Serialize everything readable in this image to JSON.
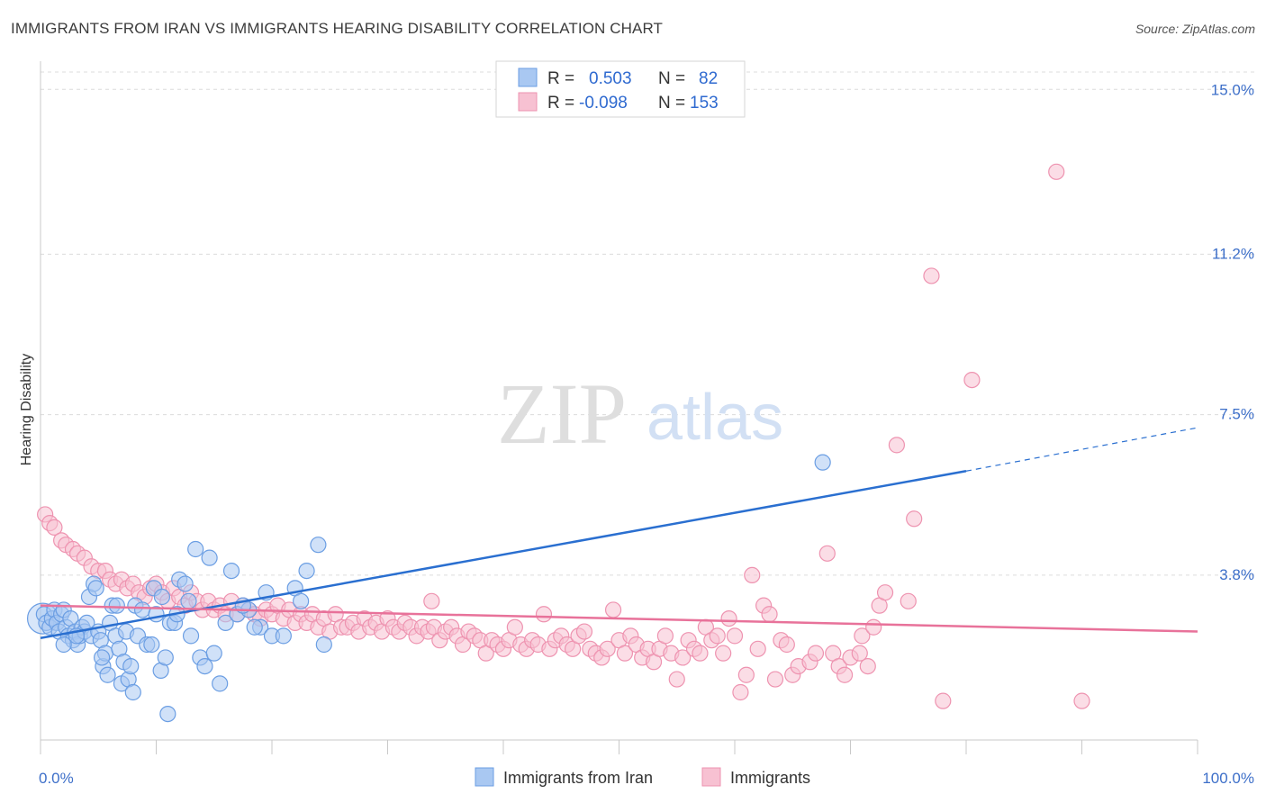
{
  "title": "IMMIGRANTS FROM IRAN VS IMMIGRANTS HEARING DISABILITY CORRELATION CHART",
  "source": "Source: ZipAtlas.com",
  "watermark": {
    "zip": "ZIP",
    "atlas": "atlas"
  },
  "colors": {
    "blue_fill": "#a9c8f2",
    "blue_stroke": "#6b9ee3",
    "blue_line": "#2a6fd0",
    "pink_fill": "#f7c1d2",
    "pink_stroke": "#ee93b0",
    "pink_line": "#e8729a",
    "grid": "#dcdcdc",
    "axis_text": "#3d6fc9"
  },
  "legend": {
    "rows": [
      {
        "r_label": "R =",
        "r_value": "0.503",
        "n_label": "N =",
        "n_value": "82",
        "series": "blue"
      },
      {
        "r_label": "R =",
        "r_value": "-0.098",
        "n_label": "N =",
        "n_value": "153",
        "series": "pink"
      }
    ]
  },
  "bottom_legend": [
    "Immigrants from Iran",
    "Immigrants"
  ],
  "chart_data": {
    "type": "scatter",
    "title": "IMMIGRANTS FROM IRAN VS IMMIGRANTS HEARING DISABILITY CORRELATION CHART",
    "xlabel": "",
    "ylabel": "Hearing Disability",
    "xlim": [
      0,
      100
    ],
    "ylim": [
      0,
      15.4
    ],
    "x_tick_labels": [
      "0.0%",
      "100.0%"
    ],
    "y_ticks": [
      3.8,
      7.5,
      11.2,
      15.0
    ],
    "y_tick_labels": [
      "3.8%",
      "7.5%",
      "11.2%",
      "15.0%"
    ],
    "grid": true,
    "legend_position": "top-center",
    "series": [
      {
        "name": "Immigrants from Iran",
        "color": "blue",
        "trend": {
          "x0": 0,
          "y0": 2.35,
          "x1": 80,
          "y1": 6.2,
          "dash_to_x": 100,
          "dash_to_y": 7.2
        },
        "points": [
          [
            0.3,
            2.9
          ],
          [
            0.5,
            2.7
          ],
          [
            0.8,
            2.6
          ],
          [
            1.0,
            2.8
          ],
          [
            1.2,
            3.0
          ],
          [
            1.4,
            2.7
          ],
          [
            1.6,
            2.5
          ],
          [
            1.8,
            2.9
          ],
          [
            2.0,
            3.0
          ],
          [
            2.2,
            2.6
          ],
          [
            2.4,
            2.4
          ],
          [
            2.6,
            2.8
          ],
          [
            2.8,
            2.3
          ],
          [
            3.0,
            2.5
          ],
          [
            3.2,
            2.2
          ],
          [
            3.4,
            2.4
          ],
          [
            3.6,
            2.6
          ],
          [
            3.8,
            2.5
          ],
          [
            4.0,
            2.7
          ],
          [
            4.2,
            3.3
          ],
          [
            4.4,
            2.4
          ],
          [
            4.6,
            3.6
          ],
          [
            4.8,
            3.5
          ],
          [
            5.0,
            2.5
          ],
          [
            5.2,
            2.3
          ],
          [
            5.4,
            1.7
          ],
          [
            5.6,
            2.0
          ],
          [
            5.8,
            1.5
          ],
          [
            6.0,
            2.7
          ],
          [
            6.2,
            3.1
          ],
          [
            6.5,
            2.4
          ],
          [
            6.8,
            2.1
          ],
          [
            7.0,
            1.3
          ],
          [
            7.2,
            1.8
          ],
          [
            7.4,
            2.5
          ],
          [
            7.6,
            1.4
          ],
          [
            7.8,
            1.7
          ],
          [
            8.0,
            1.1
          ],
          [
            8.2,
            3.1
          ],
          [
            8.4,
            2.4
          ],
          [
            8.8,
            3.0
          ],
          [
            9.2,
            2.2
          ],
          [
            9.6,
            2.2
          ],
          [
            9.8,
            3.5
          ],
          [
            10.0,
            2.9
          ],
          [
            10.4,
            1.6
          ],
          [
            10.8,
            1.9
          ],
          [
            11.2,
            2.7
          ],
          [
            11.6,
            2.7
          ],
          [
            11.0,
            0.6
          ],
          [
            12.0,
            3.7
          ],
          [
            12.5,
            3.6
          ],
          [
            13.0,
            2.4
          ],
          [
            13.4,
            4.4
          ],
          [
            13.8,
            1.9
          ],
          [
            14.2,
            1.7
          ],
          [
            14.6,
            4.2
          ],
          [
            15.0,
            2.0
          ],
          [
            15.5,
            1.3
          ],
          [
            16.0,
            2.7
          ],
          [
            16.5,
            3.9
          ],
          [
            17.0,
            2.9
          ],
          [
            18.0,
            3.0
          ],
          [
            19.0,
            2.6
          ],
          [
            20.0,
            2.4
          ],
          [
            22.0,
            3.5
          ],
          [
            22.5,
            3.2
          ],
          [
            18.5,
            2.6
          ],
          [
            19.5,
            3.4
          ],
          [
            17.5,
            3.1
          ],
          [
            21.0,
            2.4
          ],
          [
            23.0,
            3.9
          ],
          [
            24.0,
            4.5
          ],
          [
            24.5,
            2.2
          ],
          [
            10.5,
            3.3
          ],
          [
            12.8,
            3.2
          ],
          [
            11.8,
            2.9
          ],
          [
            6.6,
            3.1
          ],
          [
            5.3,
            1.9
          ],
          [
            3.1,
            2.4
          ],
          [
            2.0,
            2.2
          ],
          [
            67.6,
            6.4
          ]
        ]
      },
      {
        "name": "Immigrants",
        "color": "pink",
        "trend": {
          "x0": 0,
          "y0": 3.1,
          "x1": 100,
          "y1": 2.5
        },
        "points": [
          [
            0.4,
            5.2
          ],
          [
            0.8,
            5.0
          ],
          [
            1.2,
            4.9
          ],
          [
            1.8,
            4.6
          ],
          [
            2.2,
            4.5
          ],
          [
            2.8,
            4.4
          ],
          [
            3.2,
            4.3
          ],
          [
            3.8,
            4.2
          ],
          [
            4.4,
            4.0
          ],
          [
            5.0,
            3.9
          ],
          [
            5.6,
            3.9
          ],
          [
            6.0,
            3.7
          ],
          [
            6.5,
            3.6
          ],
          [
            7.0,
            3.7
          ],
          [
            7.5,
            3.5
          ],
          [
            8.0,
            3.6
          ],
          [
            8.5,
            3.4
          ],
          [
            9.0,
            3.3
          ],
          [
            9.5,
            3.5
          ],
          [
            10.0,
            3.6
          ],
          [
            10.5,
            3.4
          ],
          [
            11.0,
            3.2
          ],
          [
            11.5,
            3.5
          ],
          [
            12.0,
            3.3
          ],
          [
            12.5,
            3.1
          ],
          [
            13.0,
            3.4
          ],
          [
            13.5,
            3.2
          ],
          [
            14.0,
            3.0
          ],
          [
            14.5,
            3.2
          ],
          [
            15.0,
            3.0
          ],
          [
            15.5,
            3.1
          ],
          [
            16.0,
            2.9
          ],
          [
            16.5,
            3.2
          ],
          [
            17.0,
            2.9
          ],
          [
            17.5,
            3.1
          ],
          [
            18.0,
            3.0
          ],
          [
            18.5,
            2.9
          ],
          [
            19.0,
            2.8
          ],
          [
            19.5,
            3.0
          ],
          [
            20.0,
            2.9
          ],
          [
            20.5,
            3.1
          ],
          [
            21.0,
            2.8
          ],
          [
            21.5,
            3.0
          ],
          [
            22.0,
            2.7
          ],
          [
            22.5,
            2.9
          ],
          [
            23.0,
            2.7
          ],
          [
            23.5,
            2.9
          ],
          [
            24.0,
            2.6
          ],
          [
            24.5,
            2.8
          ],
          [
            25.0,
            2.5
          ],
          [
            25.5,
            2.9
          ],
          [
            26.0,
            2.6
          ],
          [
            26.5,
            2.6
          ],
          [
            27.0,
            2.7
          ],
          [
            27.5,
            2.5
          ],
          [
            28.0,
            2.8
          ],
          [
            28.5,
            2.6
          ],
          [
            29.0,
            2.7
          ],
          [
            29.5,
            2.5
          ],
          [
            30.0,
            2.8
          ],
          [
            30.5,
            2.6
          ],
          [
            31.0,
            2.5
          ],
          [
            31.5,
            2.7
          ],
          [
            32.0,
            2.6
          ],
          [
            32.5,
            2.4
          ],
          [
            33.0,
            2.6
          ],
          [
            33.5,
            2.5
          ],
          [
            34.0,
            2.6
          ],
          [
            34.5,
            2.3
          ],
          [
            35.0,
            2.5
          ],
          [
            35.5,
            2.6
          ],
          [
            36.0,
            2.4
          ],
          [
            36.5,
            2.2
          ],
          [
            37.0,
            2.5
          ],
          [
            37.5,
            2.4
          ],
          [
            38.0,
            2.3
          ],
          [
            38.5,
            2.0
          ],
          [
            39.0,
            2.3
          ],
          [
            39.5,
            2.2
          ],
          [
            40.0,
            2.1
          ],
          [
            40.5,
            2.3
          ],
          [
            41.0,
            2.6
          ],
          [
            41.5,
            2.2
          ],
          [
            42.0,
            2.1
          ],
          [
            42.5,
            2.3
          ],
          [
            43.0,
            2.2
          ],
          [
            43.5,
            2.9
          ],
          [
            44.0,
            2.1
          ],
          [
            44.5,
            2.3
          ],
          [
            45.0,
            2.4
          ],
          [
            45.5,
            2.2
          ],
          [
            46.0,
            2.1
          ],
          [
            46.5,
            2.4
          ],
          [
            47.0,
            2.5
          ],
          [
            47.5,
            2.1
          ],
          [
            48.0,
            2.0
          ],
          [
            48.5,
            1.9
          ],
          [
            49.0,
            2.1
          ],
          [
            49.5,
            3.0
          ],
          [
            50.0,
            2.3
          ],
          [
            50.5,
            2.0
          ],
          [
            51.0,
            2.4
          ],
          [
            51.5,
            2.2
          ],
          [
            52.0,
            1.9
          ],
          [
            52.5,
            2.1
          ],
          [
            53.0,
            1.8
          ],
          [
            53.5,
            2.1
          ],
          [
            54.0,
            2.4
          ],
          [
            54.5,
            2.0
          ],
          [
            55.0,
            1.4
          ],
          [
            55.5,
            1.9
          ],
          [
            56.0,
            2.3
          ],
          [
            56.5,
            2.1
          ],
          [
            57.0,
            2.0
          ],
          [
            57.5,
            2.6
          ],
          [
            58.0,
            2.3
          ],
          [
            58.5,
            2.4
          ],
          [
            59.0,
            2.0
          ],
          [
            59.5,
            2.8
          ],
          [
            60.0,
            2.4
          ],
          [
            60.5,
            1.1
          ],
          [
            61.0,
            1.5
          ],
          [
            61.5,
            3.8
          ],
          [
            62.0,
            2.1
          ],
          [
            62.5,
            3.1
          ],
          [
            63.0,
            2.9
          ],
          [
            63.5,
            1.4
          ],
          [
            64.0,
            2.3
          ],
          [
            64.5,
            2.2
          ],
          [
            65.0,
            1.5
          ],
          [
            65.5,
            1.7
          ],
          [
            66.5,
            1.8
          ],
          [
            67.0,
            2.0
          ],
          [
            68.0,
            4.3
          ],
          [
            68.5,
            2.0
          ],
          [
            69.0,
            1.7
          ],
          [
            69.5,
            1.5
          ],
          [
            70.0,
            1.9
          ],
          [
            71.0,
            2.4
          ],
          [
            71.5,
            1.7
          ],
          [
            72.0,
            2.6
          ],
          [
            72.5,
            3.1
          ],
          [
            73.0,
            3.4
          ],
          [
            74.0,
            6.8
          ],
          [
            75.0,
            3.2
          ],
          [
            75.5,
            5.1
          ],
          [
            78.0,
            0.9
          ],
          [
            77.0,
            10.7
          ],
          [
            80.5,
            8.3
          ],
          [
            87.8,
            13.1
          ],
          [
            90.0,
            0.9
          ],
          [
            70.8,
            2.0
          ],
          [
            33.8,
            3.2
          ]
        ]
      }
    ]
  }
}
